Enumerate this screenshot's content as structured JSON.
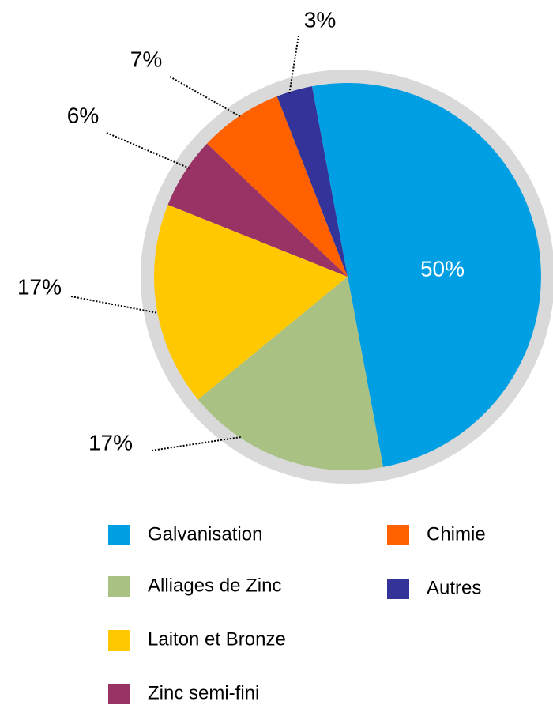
{
  "chart_data": {
    "type": "pie",
    "categories": [
      "Galvanisation",
      "Alliages de Zinc",
      "Laiton et Bronze",
      "Zinc semi-fini",
      "Chimie",
      "Autres"
    ],
    "values": [
      50,
      17,
      17,
      6,
      7,
      3
    ],
    "value_labels": [
      "50%",
      "17%",
      "17%",
      "6%",
      "7%",
      "3%"
    ],
    "colors": [
      "#009fe3",
      "#a9c283",
      "#ffc800",
      "#993366",
      "#ff6000",
      "#333399"
    ]
  }
}
